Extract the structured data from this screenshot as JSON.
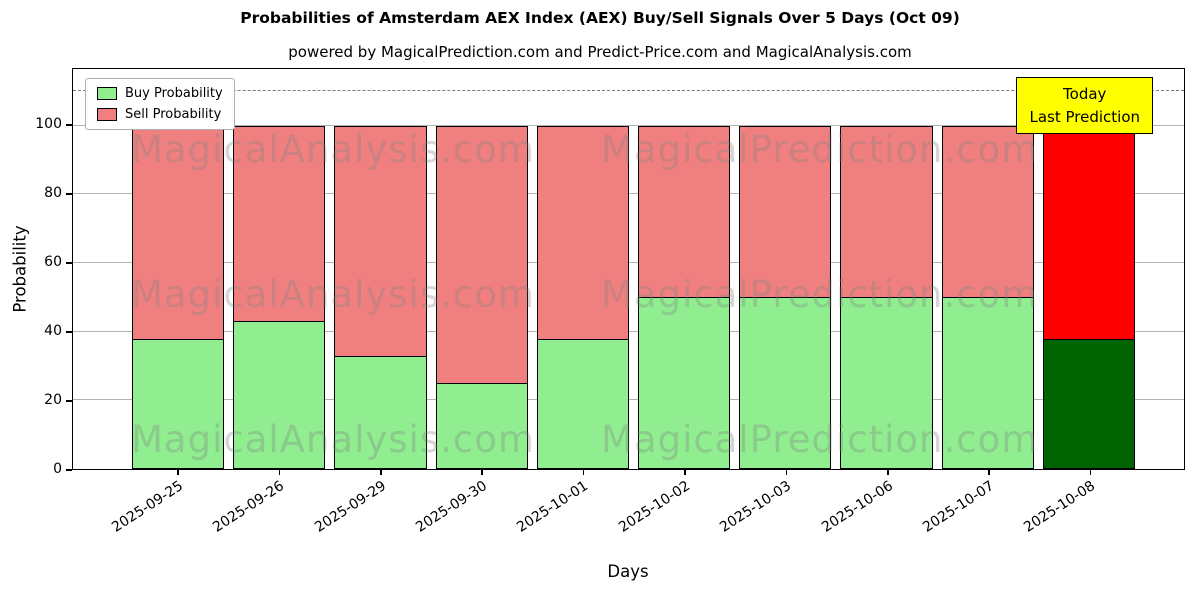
{
  "figure": {
    "title": "Probabilities of Amsterdam AEX Index (AEX) Buy/Sell Signals Over 5 Days (Oct 09)",
    "subtitle": "powered by MagicalPrediction.com and Predict-Price.com and MagicalAnalysis.com",
    "xlabel": "Days",
    "ylabel": "Probability"
  },
  "legend": {
    "items": [
      {
        "label": "Buy Probability",
        "color": "#90ee90"
      },
      {
        "label": "Sell Probability",
        "color": "#f08080"
      }
    ]
  },
  "annotation": {
    "line1": "Today",
    "line2": "Last Prediction",
    "bg_color": "#ffff00"
  },
  "watermarks": {
    "left_text": "MagicalAnalysis.com",
    "right_text": "MagicalPrediction.com"
  },
  "chart_data": {
    "type": "bar",
    "stacked": true,
    "title": "Probabilities of Amsterdam AEX Index (AEX) Buy/Sell Signals Over 5 Days (Oct 09)",
    "xlabel": "Days",
    "ylabel": "Probability",
    "categories": [
      "2025-09-25",
      "2025-09-26",
      "2025-09-29",
      "2025-09-30",
      "2025-10-01",
      "2025-10-02",
      "2025-10-03",
      "2025-10-06",
      "2025-10-07",
      "2025-10-08"
    ],
    "series": [
      {
        "name": "Buy Probability",
        "values": [
          38,
          43,
          33,
          25,
          38,
          50,
          50,
          50,
          50,
          38
        ]
      },
      {
        "name": "Sell Probability",
        "values": [
          62,
          57,
          67,
          75,
          62,
          50,
          50,
          50,
          50,
          62
        ]
      }
    ],
    "colors": {
      "buy": "#90ee90",
      "sell": "#f08080",
      "buy_today": "#006400",
      "sell_today": "#ff0000",
      "edge": "#000000"
    },
    "today_index": 9,
    "ylim": [
      0,
      116.5
    ],
    "yticks": [
      0,
      20,
      40,
      60,
      80,
      100
    ],
    "dashed_line_y": 110,
    "grid": true,
    "legend_position": "upper left"
  }
}
